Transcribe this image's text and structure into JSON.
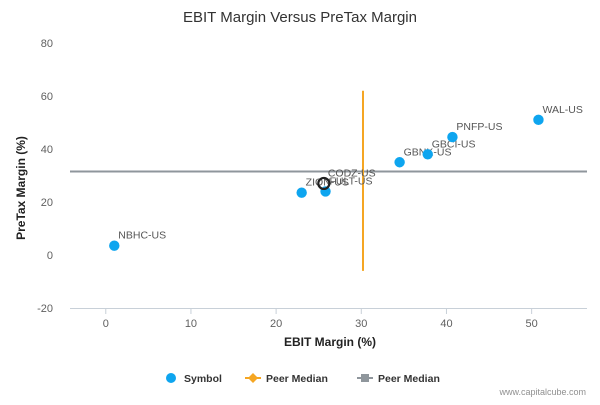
{
  "chart_data": {
    "type": "scatter",
    "title": "EBIT Margin Versus PreTax Margin",
    "xlabel": "EBIT Margin (%)",
    "ylabel": "PreTax Margin (%)",
    "xlim": [
      -4.2,
      56.5
    ],
    "ylim": [
      -20,
      80
    ],
    "x_ticks": [
      0,
      10,
      20,
      30,
      40,
      50
    ],
    "y_ticks": [
      -20,
      0,
      20,
      40,
      60,
      80
    ],
    "grid": false,
    "points": [
      {
        "label": "NBHC-US",
        "x": 1.0,
        "y": 3.5
      },
      {
        "label": "ZION-US",
        "x": 23.0,
        "y": 23.5
      },
      {
        "label": "FULT-US",
        "x": 25.8,
        "y": 24.0
      },
      {
        "label": "CODZ-US",
        "x": 25.6,
        "y": 27.0,
        "highlight": true
      },
      {
        "label": "GBNK-US",
        "x": 34.5,
        "y": 35.0
      },
      {
        "label": "GBCI-US",
        "x": 37.8,
        "y": 38.0
      },
      {
        "label": "PNFP-US",
        "x": 40.7,
        "y": 44.5
      },
      {
        "label": "WAL-US",
        "x": 50.8,
        "y": 51.0
      }
    ],
    "peer_median_x": 30.2,
    "peer_median_x_range": [
      -6,
      62
    ],
    "peer_median_y": 31.5,
    "legend": [
      {
        "label": "Symbol",
        "color": "#0ea5ef",
        "marker": "circle"
      },
      {
        "label": "Peer Median",
        "color": "#f5a623",
        "marker": "diamond-line"
      },
      {
        "label": "Peer Median",
        "color": "#8f969c",
        "marker": "square-line"
      }
    ],
    "legend_position": "bottom",
    "colors": {
      "symbol": "#0ea5ef",
      "peer_median_x": "#f5a623",
      "peer_median_y": "#8f969c",
      "highlight": "#222222"
    }
  },
  "credit": "www.capitalcube.com"
}
